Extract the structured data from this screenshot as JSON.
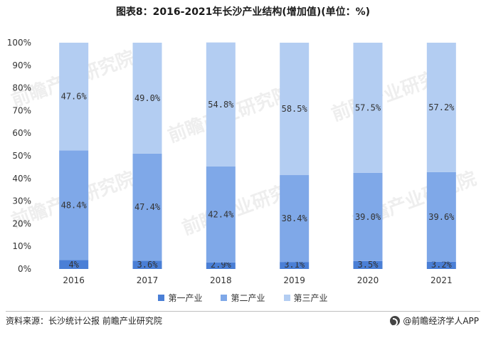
{
  "title": "图表8：2016-2021年长沙产业结构(增加值)(单位：%)",
  "source_label": "资料来源：长沙统计公报 前瞻产业研究院",
  "brand": "@前瞻经济学人APP",
  "watermark": "前瞻产业研究院",
  "chart_data": {
    "type": "bar",
    "stacked": true,
    "categories": [
      "2016",
      "2017",
      "2018",
      "2019",
      "2020",
      "2021"
    ],
    "series": [
      {
        "name": "第一产业",
        "color": "#4a7fd6",
        "values": [
          4.0,
          3.6,
          2.9,
          3.1,
          3.5,
          3.2
        ],
        "labels": [
          "4%",
          "3.6%",
          "2.9%",
          "3.1%",
          "3.5%",
          "3.2%"
        ]
      },
      {
        "name": "第二产业",
        "color": "#7fa8e8",
        "values": [
          48.4,
          47.4,
          42.4,
          38.4,
          39.0,
          39.6
        ],
        "labels": [
          "48.4%",
          "47.4%",
          "42.4%",
          "38.4%",
          "39.0%",
          "39.6%"
        ]
      },
      {
        "name": "第三产业",
        "color": "#b3cdf2",
        "values": [
          47.6,
          49.0,
          54.8,
          58.5,
          57.5,
          57.2
        ],
        "labels": [
          "47.6%",
          "49.0%",
          "54.8%",
          "58.5%",
          "57.5%",
          "57.2%"
        ]
      }
    ],
    "ylim": [
      0,
      100
    ],
    "yticks": [
      "0%",
      "10%",
      "20%",
      "30%",
      "40%",
      "50%",
      "60%",
      "70%",
      "80%",
      "90%",
      "100%"
    ],
    "legend_position": "bottom",
    "grid": false
  }
}
